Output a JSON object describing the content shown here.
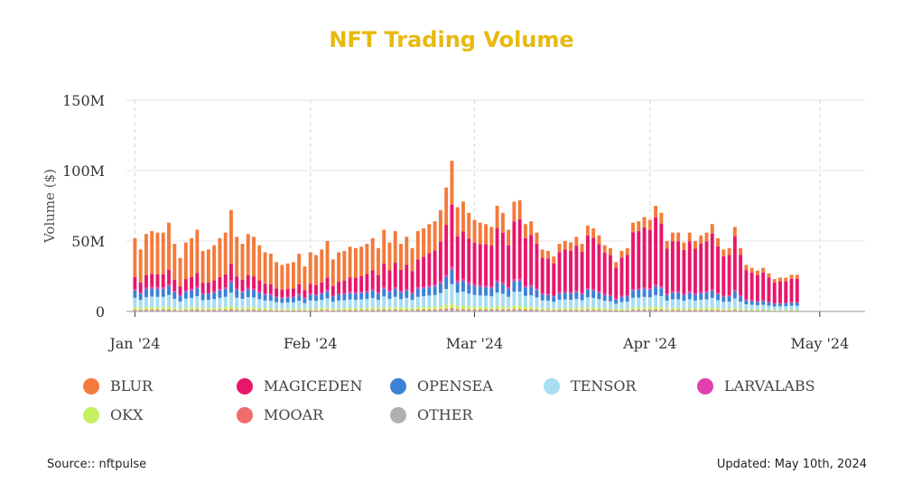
{
  "page": {
    "title": "NFT Trading Volume",
    "source": "Source:: nftpulse",
    "updated": "Updated: May 10th, 2024"
  },
  "chart_data": {
    "type": "bar",
    "stacked": true,
    "title": "NFT Trading Volume",
    "xlabel": "",
    "ylabel": "Volume ($)",
    "ylim": [
      0,
      150
    ],
    "y_unit": "M",
    "y_ticks": [
      "0",
      "50M",
      "100M",
      "150M"
    ],
    "x_range": [
      "2024-01-01",
      "2024-05-08"
    ],
    "x_ticks": [
      {
        "label": "Jan '24",
        "date": "2024-01-01"
      },
      {
        "label": "Feb '24",
        "date": "2024-02-01"
      },
      {
        "label": "Mar '24",
        "date": "2024-03-01"
      },
      {
        "label": "Apr '24",
        "date": "2024-04-01"
      },
      {
        "label": "May '24",
        "date": "2024-05-01"
      }
    ],
    "grid": true,
    "legend_position": "bottom",
    "series": [
      {
        "name": "BLUR",
        "color": "#f47a3b"
      },
      {
        "name": "MAGICEDEN",
        "color": "#e8166b"
      },
      {
        "name": "OPENSEA",
        "color": "#3b82d6"
      },
      {
        "name": "TENSOR",
        "color": "#a8ddf2"
      },
      {
        "name": "LARVALABS",
        "color": "#e23fb0"
      },
      {
        "name": "OKX",
        "color": "#c5f060"
      },
      {
        "name": "MOOAR",
        "color": "#f26b6b"
      },
      {
        "name": "OTHER",
        "color": "#b0b0b0"
      }
    ],
    "daily_totals": [
      52,
      44,
      55,
      57,
      56,
      56,
      63,
      48,
      38,
      49,
      52,
      58,
      43,
      44,
      47,
      52,
      56,
      72,
      53,
      48,
      55,
      53,
      47,
      42,
      41,
      35,
      33,
      34,
      35,
      41,
      32,
      42,
      40,
      44,
      50,
      37,
      42,
      43,
      46,
      45,
      46,
      48,
      52,
      45,
      58,
      49,
      57,
      48,
      53,
      45,
      57,
      59,
      62,
      64,
      72,
      88,
      107,
      74,
      78,
      70,
      65,
      63,
      62,
      60,
      75,
      70,
      58,
      78,
      79,
      62,
      64,
      56,
      44,
      43,
      39,
      48,
      50,
      49,
      53,
      48,
      61,
      59,
      54,
      47,
      45,
      35,
      43,
      45,
      63,
      64,
      67,
      65,
      75,
      70,
      50,
      56,
      56,
      49,
      56,
      50,
      54,
      56,
      62,
      52,
      44,
      45,
      60,
      45,
      33,
      31,
      29,
      31,
      27,
      23,
      24,
      24,
      26,
      26
    ]
  }
}
